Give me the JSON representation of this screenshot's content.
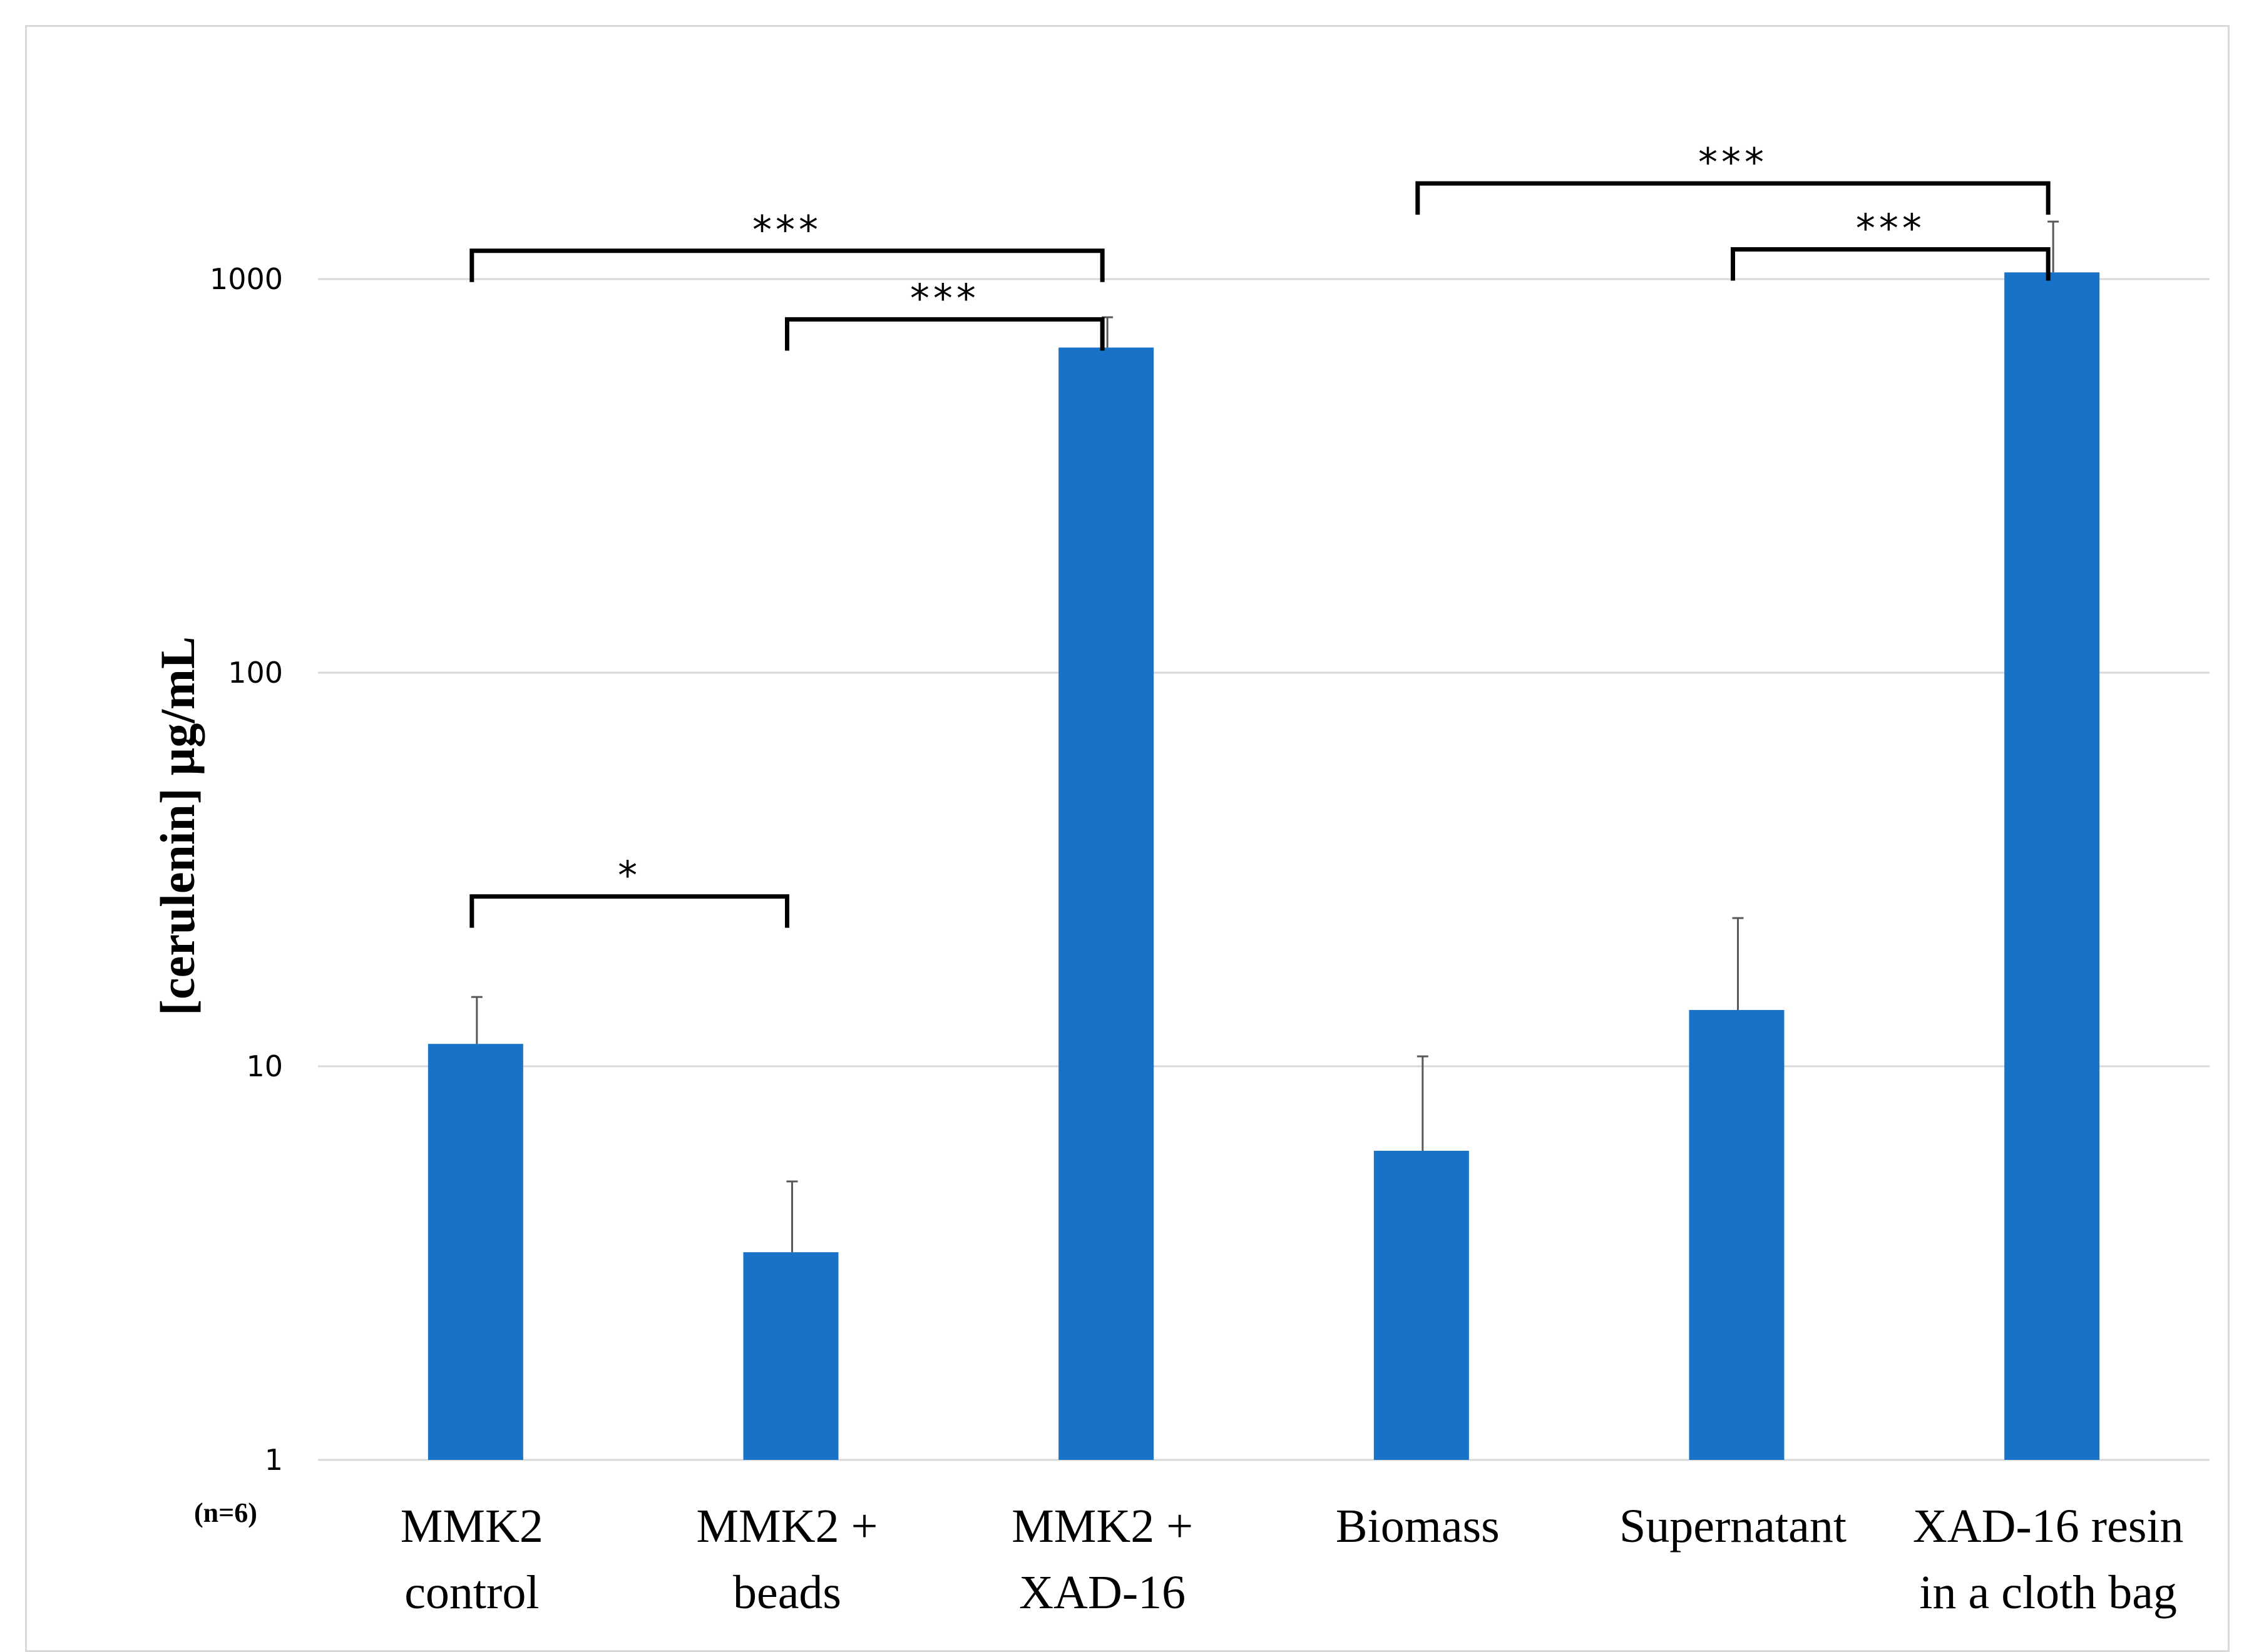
{
  "chart_data": {
    "type": "bar",
    "title": "",
    "xlabel": "",
    "ylabel": "[cerulenin] µg/mL",
    "yscale": "log",
    "ylim": [
      1,
      3000
    ],
    "yticks": [
      1,
      10,
      100,
      1000
    ],
    "ytick_labels": [
      "1",
      "10",
      "100",
      "1000"
    ],
    "grid": true,
    "sample_size_label": "(n=6)",
    "bar_color": "#1873C8",
    "categories": [
      [
        "MMK2",
        "control"
      ],
      [
        "MMK2 +",
        "beads"
      ],
      [
        "MMK2 +",
        "XAD-16"
      ],
      [
        "Biomass"
      ],
      [
        "Supernatant"
      ],
      [
        "XAD-16 resin",
        "in a cloth bag"
      ]
    ],
    "values": [
      11.4,
      3.37,
      670,
      6.1,
      13.9,
      1040
    ],
    "error_upper": [
      15.0,
      5.1,
      800,
      10.6,
      23.8,
      1400
    ],
    "significance": [
      {
        "from": 0,
        "to": 2,
        "label": "***",
        "level": 1180
      },
      {
        "from": 1,
        "to": 2,
        "label": "***",
        "level": 790
      },
      {
        "from": 3,
        "to": 5,
        "label": "***",
        "level": 1750
      },
      {
        "from": 4,
        "to": 5,
        "label": "***",
        "level": 1190
      },
      {
        "from": 0,
        "to": 1,
        "label": "*",
        "level": 27
      }
    ]
  }
}
